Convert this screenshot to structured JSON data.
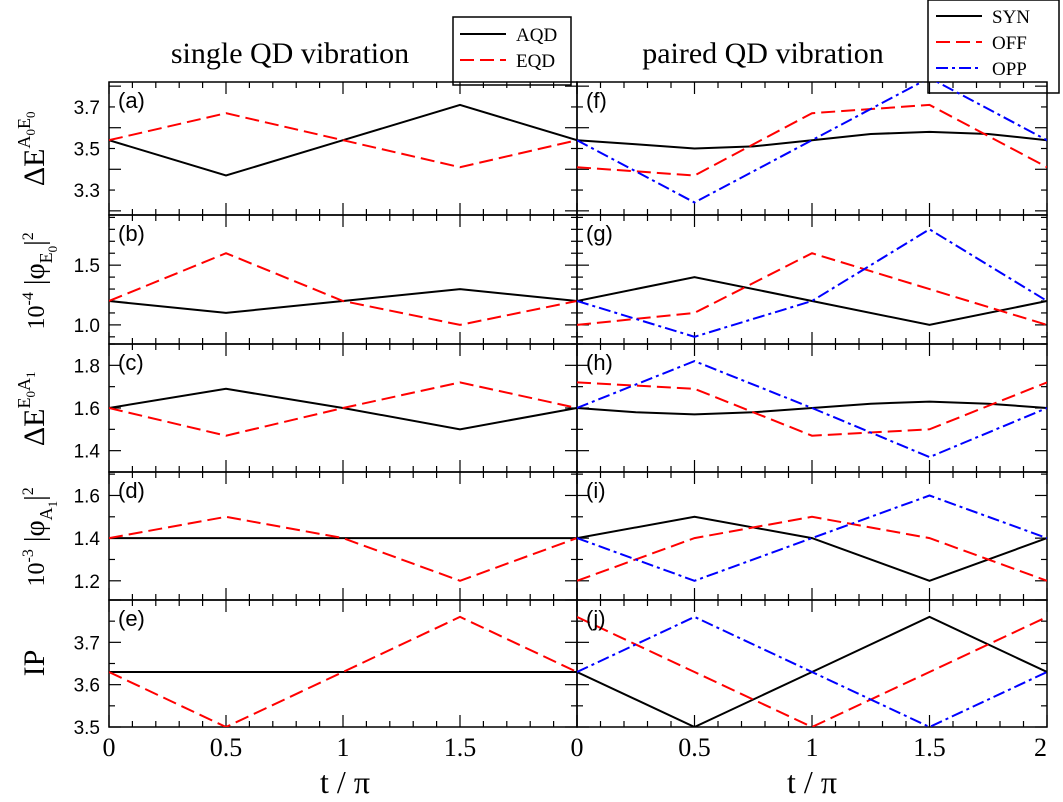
{
  "titles": {
    "left": "single QD vibration",
    "right": "paired QD vibration"
  },
  "xlabel": "t / π",
  "left_xticks": [
    "0",
    "0.5",
    "1",
    "1.5"
  ],
  "right_xticks": [
    "0",
    "0.5",
    "1",
    "1.5",
    "2"
  ],
  "legends": {
    "left": [
      {
        "name": "AQD",
        "color": "#000000",
        "dash": "solid"
      },
      {
        "name": "EQD",
        "color": "#ff0000",
        "dash": "dashed"
      }
    ],
    "right": [
      {
        "name": "SYN",
        "color": "#000000",
        "dash": "solid"
      },
      {
        "name": "OFF",
        "color": "#ff0000",
        "dash": "dashed"
      },
      {
        "name": "OPP",
        "color": "#0000ff",
        "dash": "dashdot"
      }
    ]
  },
  "ylabels": {
    "r0": {
      "main": "ΔE",
      "sup": "A",
      "supsub": "0",
      "sup2": "E",
      "sup2sub": "0"
    },
    "r1": {
      "pre": "10",
      "pre_sup": "-4",
      "main": " |φ",
      "sub": "E",
      "subsub": "0",
      "post": "|",
      "post_sup": "2"
    },
    "r2": {
      "main": "ΔE",
      "sup": "E",
      "supsub": "0",
      "sup2": "A",
      "sup2sub": "1"
    },
    "r3": {
      "pre": "10",
      "pre_sup": "-3",
      "main": " |φ",
      "sub": "A",
      "subsub": "1",
      "post": "|",
      "post_sup": "2"
    },
    "r4": {
      "main": "IP"
    }
  },
  "chart_data": [
    {
      "type": "line",
      "panel": "(a)",
      "xlim": [
        0,
        2
      ],
      "ylim": [
        3.18,
        3.82
      ],
      "yticks": [
        "3.3",
        "3.5",
        "3.7"
      ],
      "x": [
        0,
        0.5,
        1,
        1.5,
        2
      ],
      "series": [
        {
          "name": "AQD",
          "values": [
            3.54,
            3.37,
            3.54,
            3.71,
            3.54
          ]
        },
        {
          "name": "EQD",
          "values": [
            3.54,
            3.67,
            3.54,
            3.41,
            3.54
          ]
        }
      ]
    },
    {
      "type": "line",
      "panel": "(b)",
      "xlim": [
        0,
        2
      ],
      "ylim": [
        0.84,
        1.92
      ],
      "yticks": [
        "1.0",
        "1.5"
      ],
      "x": [
        0,
        0.5,
        1,
        1.5,
        2
      ],
      "series": [
        {
          "name": "AQD",
          "values": [
            1.2,
            1.1,
            1.2,
            1.3,
            1.2
          ]
        },
        {
          "name": "EQD",
          "values": [
            1.2,
            1.6,
            1.2,
            1.0,
            1.2
          ]
        }
      ]
    },
    {
      "type": "line",
      "panel": "(c)",
      "xlim": [
        0,
        2
      ],
      "ylim": [
        1.3,
        1.9
      ],
      "yticks": [
        "1.4",
        "1.6",
        "1.8"
      ],
      "x": [
        0,
        0.5,
        1,
        1.5,
        2
      ],
      "series": [
        {
          "name": "AQD",
          "values": [
            1.6,
            1.69,
            1.6,
            1.5,
            1.6
          ]
        },
        {
          "name": "EQD",
          "values": [
            1.6,
            1.47,
            1.6,
            1.72,
            1.6
          ]
        }
      ]
    },
    {
      "type": "line",
      "panel": "(d)",
      "xlim": [
        0,
        2
      ],
      "ylim": [
        1.11,
        1.71
      ],
      "yticks": [
        "1.2",
        "1.4",
        "1.6"
      ],
      "x": [
        0,
        0.5,
        1,
        1.5,
        2
      ],
      "series": [
        {
          "name": "AQD",
          "values": [
            1.4,
            1.4,
            1.4,
            1.4,
            1.4
          ]
        },
        {
          "name": "EQD",
          "values": [
            1.4,
            1.5,
            1.4,
            1.2,
            1.4
          ]
        }
      ]
    },
    {
      "type": "line",
      "panel": "(e)",
      "xlim": [
        0,
        2
      ],
      "ylim": [
        3.5,
        3.8
      ],
      "yticks": [
        "3.5",
        "3.6",
        "3.7"
      ],
      "x": [
        0,
        0.5,
        1,
        1.5,
        2
      ],
      "series": [
        {
          "name": "AQD",
          "values": [
            3.63,
            3.63,
            3.63,
            3.63,
            3.63
          ]
        },
        {
          "name": "EQD",
          "values": [
            3.63,
            3.5,
            3.63,
            3.76,
            3.63
          ]
        }
      ]
    },
    {
      "type": "line",
      "panel": "(f)",
      "xlim": [
        0,
        2
      ],
      "ylim": [
        3.18,
        3.82
      ],
      "x": [
        0,
        0.5,
        1,
        1.5,
        2
      ],
      "series": [
        {
          "name": "SYN",
          "x": [
            0,
            0.25,
            0.5,
            0.75,
            1,
            1.25,
            1.5,
            1.75,
            2
          ],
          "values": [
            3.54,
            3.52,
            3.5,
            3.51,
            3.54,
            3.57,
            3.58,
            3.57,
            3.54
          ]
        },
        {
          "name": "OFF",
          "values": [
            3.41,
            3.37,
            3.67,
            3.71,
            3.41
          ]
        },
        {
          "name": "OPP",
          "values": [
            3.54,
            3.24,
            3.54,
            3.84,
            3.54
          ]
        }
      ]
    },
    {
      "type": "line",
      "panel": "(g)",
      "xlim": [
        0,
        2
      ],
      "ylim": [
        0.84,
        1.92
      ],
      "x": [
        0,
        0.5,
        1,
        1.5,
        2
      ],
      "series": [
        {
          "name": "SYN",
          "values": [
            1.2,
            1.4,
            1.2,
            1.0,
            1.2
          ]
        },
        {
          "name": "OFF",
          "values": [
            1.0,
            1.1,
            1.6,
            1.3,
            1.0
          ]
        },
        {
          "name": "OPP",
          "values": [
            1.2,
            0.9,
            1.2,
            1.8,
            1.2
          ]
        }
      ]
    },
    {
      "type": "line",
      "panel": "(h)",
      "xlim": [
        0,
        2
      ],
      "ylim": [
        1.3,
        1.9
      ],
      "x": [
        0,
        0.5,
        1,
        1.5,
        2
      ],
      "series": [
        {
          "name": "SYN",
          "x": [
            0,
            0.25,
            0.5,
            0.75,
            1,
            1.25,
            1.5,
            1.75,
            2
          ],
          "values": [
            1.6,
            1.58,
            1.57,
            1.58,
            1.6,
            1.62,
            1.63,
            1.62,
            1.6
          ]
        },
        {
          "name": "OFF",
          "values": [
            1.72,
            1.69,
            1.47,
            1.5,
            1.72
          ]
        },
        {
          "name": "OPP",
          "values": [
            1.6,
            1.82,
            1.6,
            1.37,
            1.6
          ]
        }
      ]
    },
    {
      "type": "line",
      "panel": "(i)",
      "xlim": [
        0,
        2
      ],
      "ylim": [
        1.11,
        1.71
      ],
      "x": [
        0,
        0.5,
        1,
        1.5,
        2
      ],
      "series": [
        {
          "name": "SYN",
          "values": [
            1.4,
            1.5,
            1.4,
            1.2,
            1.4
          ]
        },
        {
          "name": "OFF",
          "values": [
            1.2,
            1.4,
            1.5,
            1.4,
            1.2
          ]
        },
        {
          "name": "OPP",
          "values": [
            1.4,
            1.2,
            1.4,
            1.6,
            1.4
          ]
        }
      ]
    },
    {
      "type": "line",
      "panel": "(j)",
      "xlim": [
        0,
        2
      ],
      "ylim": [
        3.5,
        3.8
      ],
      "x": [
        0,
        0.5,
        1,
        1.5,
        2
      ],
      "series": [
        {
          "name": "SYN",
          "values": [
            3.63,
            3.5,
            3.63,
            3.76,
            3.63
          ]
        },
        {
          "name": "OFF",
          "values": [
            3.76,
            3.63,
            3.5,
            3.63,
            3.76
          ]
        },
        {
          "name": "OPP",
          "values": [
            3.63,
            3.76,
            3.63,
            3.5,
            3.63
          ]
        }
      ]
    }
  ]
}
